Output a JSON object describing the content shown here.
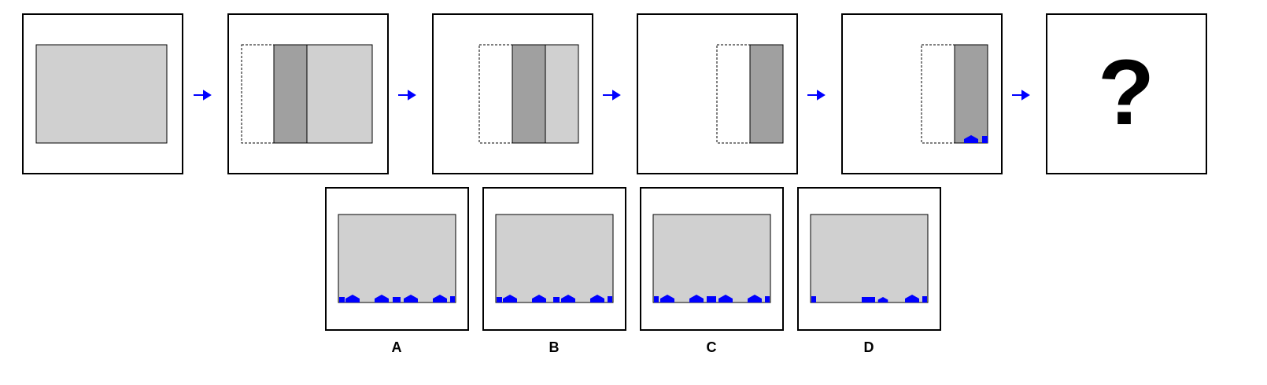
{
  "puzzle": {
    "sequence_steps": 5,
    "unknown_symbol": "?",
    "arrow_icon": "right-arrow-icon",
    "options": [
      {
        "label": "A",
        "icons": [
          "rect",
          "pentagon",
          "pentagon",
          "rect",
          "pentagon",
          "pentagon",
          "rect"
        ]
      },
      {
        "label": "B",
        "icons": [
          "rect",
          "pentagon",
          "pentagon",
          "rect",
          "pentagon",
          "pentagon",
          "rect"
        ]
      },
      {
        "label": "C",
        "icons": [
          "rect",
          "pentagon",
          "pentagon",
          "rect",
          "pentagon",
          "pentagon",
          "rect"
        ]
      },
      {
        "label": "D",
        "icons": [
          "rect",
          "rect",
          "pentagon",
          "pentagon",
          "rect"
        ]
      }
    ]
  },
  "colors": {
    "sheet": "#d0d0d0",
    "fold": "#a0a0a0",
    "marker": "#0000ff",
    "outline": "#000000",
    "arrow": "#0000ff"
  }
}
